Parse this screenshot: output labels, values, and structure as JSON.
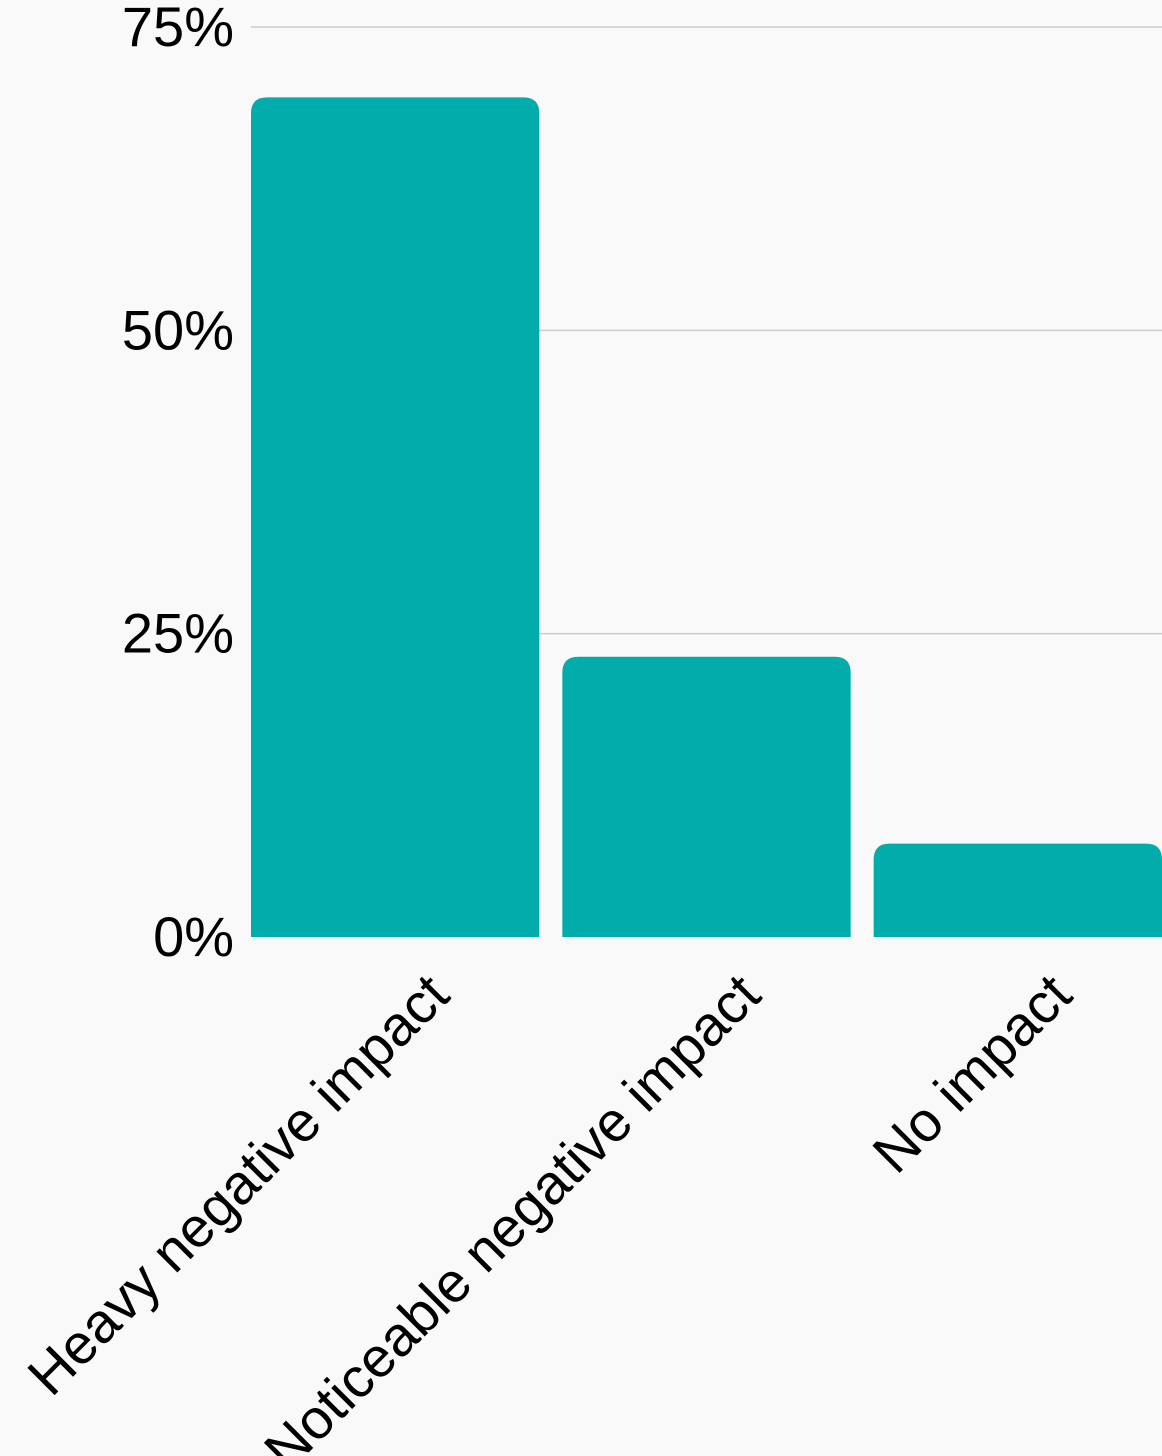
{
  "chart_data": {
    "type": "bar",
    "title": "",
    "xlabel": "",
    "ylabel": "",
    "categories": [
      "Heavy negative impact",
      "Noticeable negative impact",
      "No impact"
    ],
    "values": [
      69.2,
      23.1,
      7.7
    ],
    "ylim": [
      0,
      75
    ],
    "y_ticks": [
      0,
      25,
      50,
      75
    ],
    "y_tick_labels": [
      "0%",
      "25%",
      "50%",
      "75%"
    ],
    "grid": true,
    "legend": "none",
    "bar_color": "#02ACAA"
  }
}
